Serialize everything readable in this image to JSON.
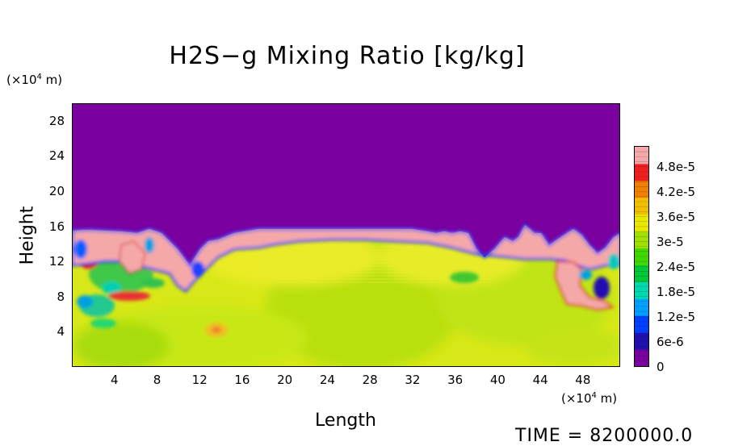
{
  "chart_data": {
    "type": "heatmap",
    "title": "H2S−g Mixing Ratio [kg/kg]",
    "xlabel": "Length",
    "ylabel": "Height",
    "x_unit_label": "(×10⁴ m)",
    "y_unit_label": "(×10⁴ m)",
    "x_unit_prefix": "(×10",
    "x_unit_exp": "4",
    "x_unit_suffix": " m)",
    "y_unit_prefix": "(×10",
    "y_unit_exp": "4",
    "y_unit_suffix": " m)",
    "xlim": [
      0,
      51.5
    ],
    "ylim": [
      0,
      30
    ],
    "x_ticks": [
      4,
      8,
      12,
      16,
      20,
      24,
      28,
      32,
      36,
      40,
      44,
      48
    ],
    "y_ticks": [
      4,
      8,
      12,
      16,
      20,
      24,
      28
    ],
    "x_tick_labels": [
      "4",
      "8",
      "12",
      "16",
      "20",
      "24",
      "28",
      "32",
      "36",
      "40",
      "44",
      "48"
    ],
    "y_tick_labels": [
      "4",
      "8",
      "12",
      "16",
      "20",
      "24",
      "28"
    ],
    "colorbar": {
      "min": 0,
      "max": 5.3e-05,
      "tick_values": [
        0,
        6e-06,
        1.2e-05,
        1.8e-05,
        2.4e-05,
        3e-05,
        3.6e-05,
        4.2e-05,
        4.8e-05
      ],
      "tick_labels": [
        "0",
        "6e-6",
        "1.2e-5",
        "1.8e-5",
        "2.4e-5",
        "3e-5",
        "3.6e-5",
        "4.2e-5",
        "4.8e-5"
      ],
      "colors": [
        "#7a00a0",
        "#2010b0",
        "#0040ff",
        "#00a0ff",
        "#00d8b0",
        "#00c838",
        "#40d800",
        "#a0e000",
        "#e8e800",
        "#f0c000",
        "#f08000",
        "#f02020",
        "#f4a8a8"
      ]
    },
    "field_description_values": {
      "upper_layer_value": 0,
      "boundary_height": 15.5,
      "lower_layer_typical_value": 3.4e-05,
      "boundary_layer_value": 5.1e-05
    },
    "time_label": "TIME = 8200000.0"
  }
}
